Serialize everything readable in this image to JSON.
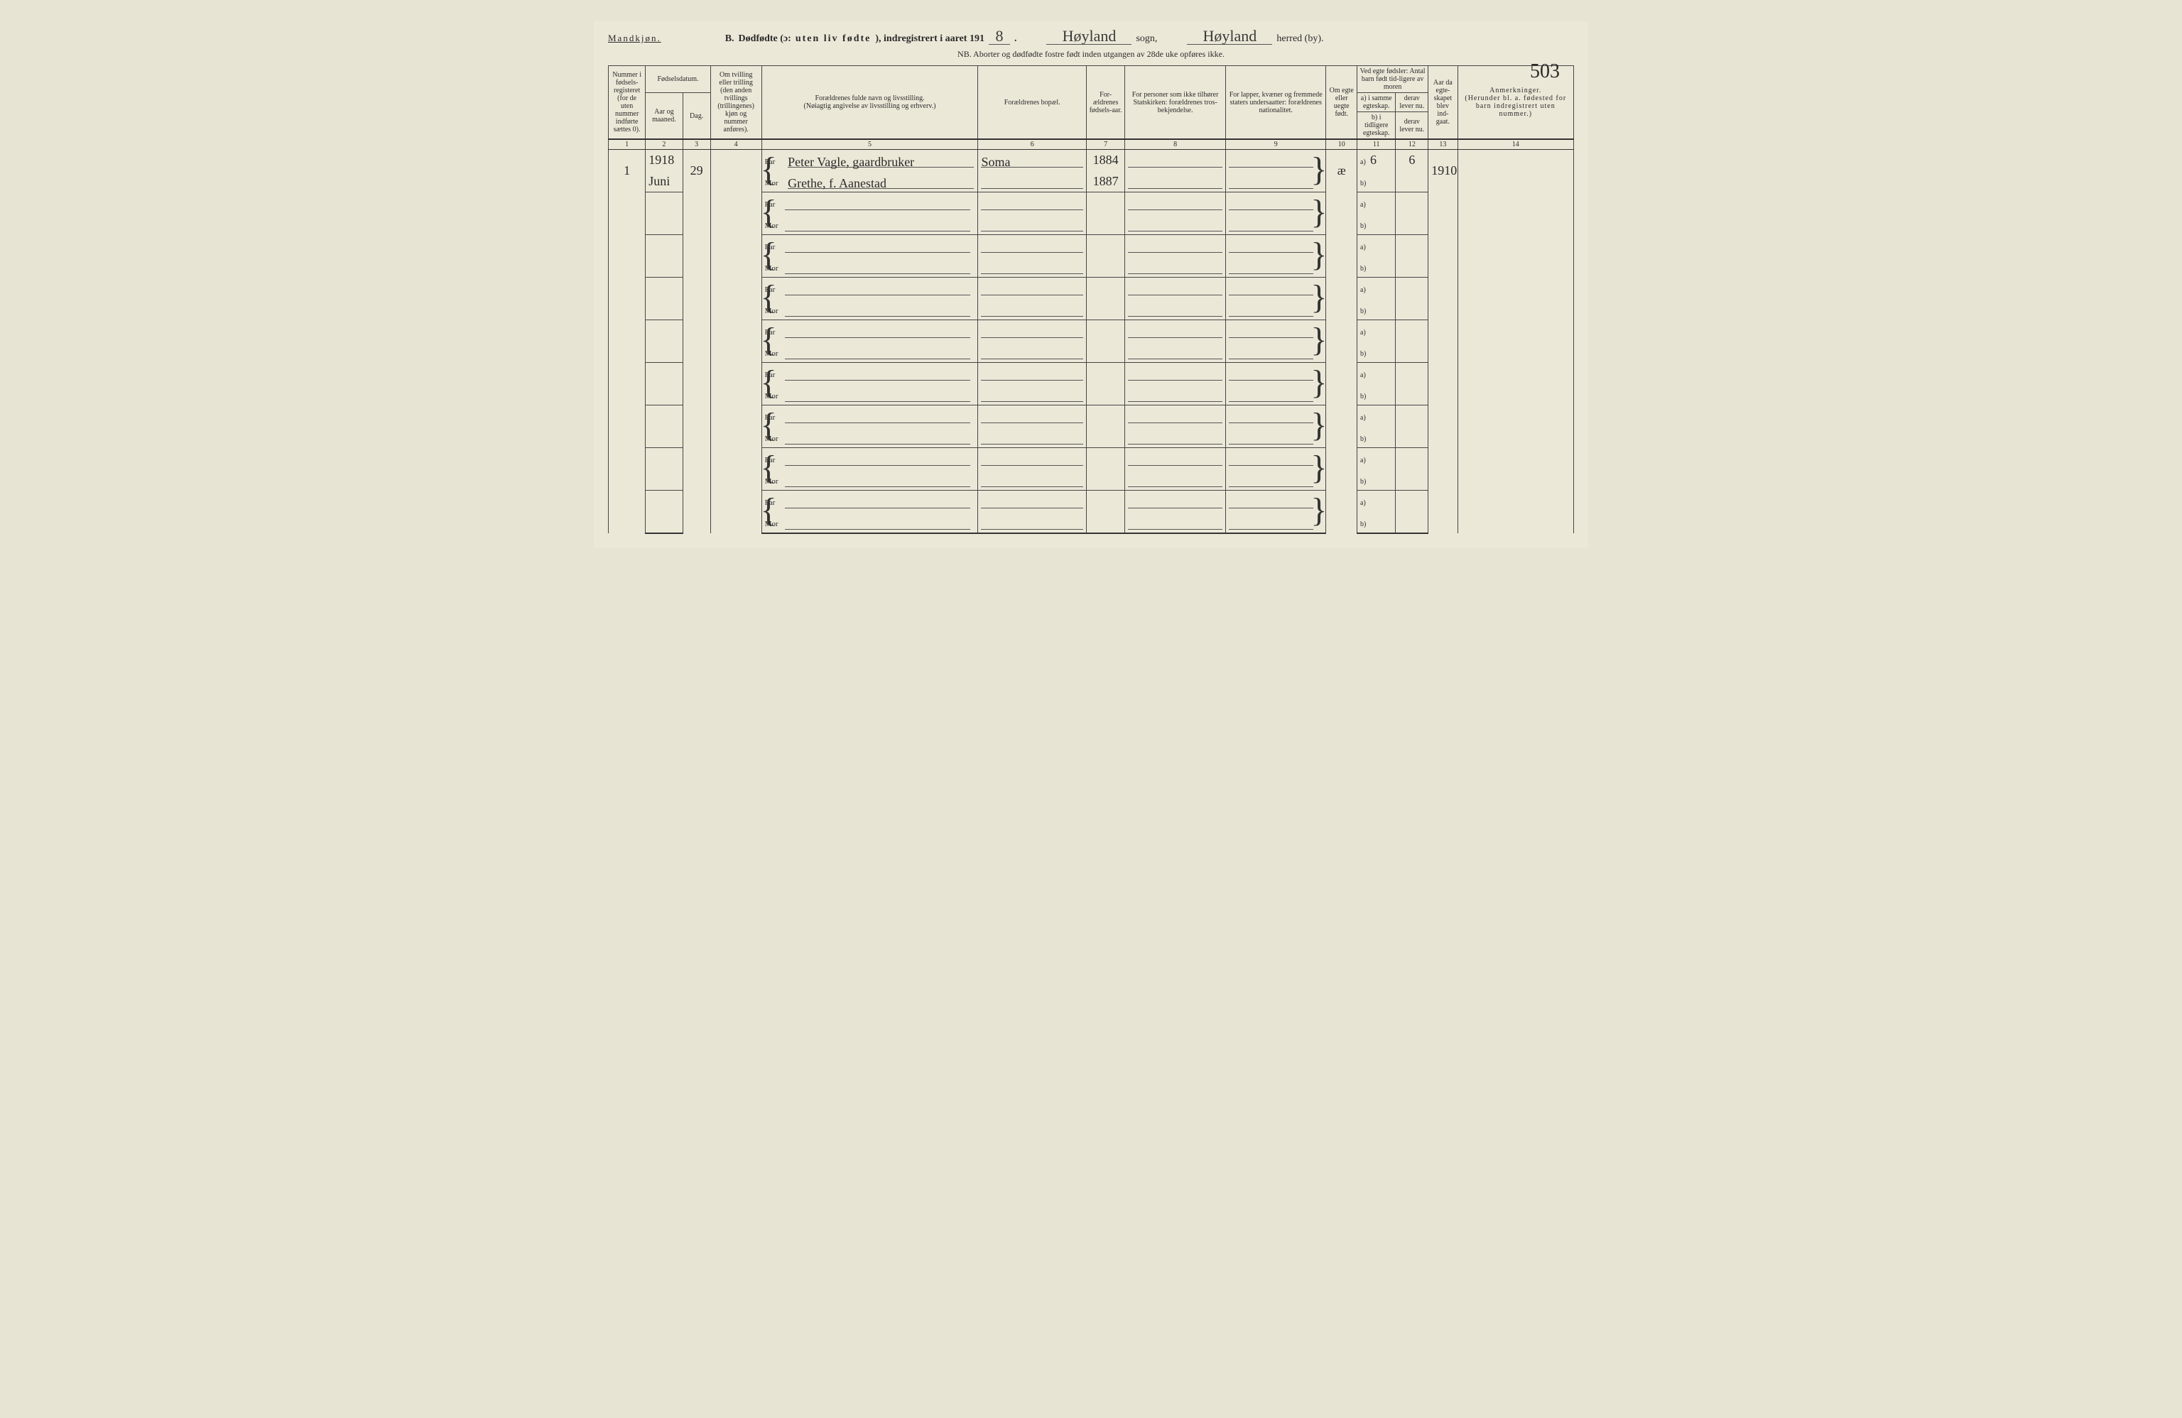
{
  "header": {
    "gender": "Mandkjøn.",
    "section_letter": "B.",
    "title_main": "Dødfødte (ɔ:",
    "title_spaced": "uten liv fødte",
    "title_tail": "), indregistrert i aaret 191",
    "year_digit": "8",
    "period": ".",
    "sogn_value": "Høyland",
    "sogn_label": "sogn,",
    "herred_value": "Høyland",
    "herred_label": "herred (by).",
    "page_number": "503",
    "nb": "NB.  Aborter og dødfødte fostre født inden utgangen av 28de uke opføres ikke."
  },
  "columns": {
    "c1": "Nummer i fødsels-registeret (for de uten nummer indførte sættes 0).",
    "c2_top": "Fødselsdatum.",
    "c2a": "Aar og maaned.",
    "c2b": "Dag.",
    "c4": "Om tvilling eller trilling (den anden tvillings (trillingenes) kjøn og nummer anføres).",
    "c5": "Forældrenes fulde navn og livsstilling.\n(Nøiagtig angivelse av livsstilling og erhverv.)",
    "c6": "Forældrenes bopæl.",
    "c7": "For-ældrenes fødsels-aar.",
    "c8": "For personer som ikke tilhører Statskirken: forældrenes tros-bekjendelse.",
    "c9": "For lapper, kvæner og fremmede staters undersaatter: forældrenes nationalitet.",
    "c10": "Om egte eller uegte født.",
    "c11_top": "Ved egte fødsler: Antal barn født tid-ligere av moren",
    "c11a": "a) i samme egteskap.",
    "c11b": "b) i tidligere egteskap.",
    "c12a": "derav lever nu.",
    "c12b": "derav lever nu.",
    "c13": "Aar da egte-skapet blev ind-gaat.",
    "c14": "Anmerkninger.\n(Herunder bl. a. fødested for barn indregistrert uten nummer.)"
  },
  "colnums": [
    "1",
    "2",
    "3",
    "4",
    "5",
    "6",
    "7",
    "8",
    "9",
    "10",
    "11",
    "12",
    "13",
    "14"
  ],
  "labels": {
    "far": "Far",
    "mor": "Mor",
    "a": "a)",
    "b": "b)"
  },
  "entry": {
    "number": "1",
    "year": "1918",
    "month": "Juni",
    "day": "29",
    "far_name": "Peter Vagle, gaardbruker",
    "mor_name": "Grethe, f. Aanestad",
    "bopael": "Soma",
    "far_year": "1884",
    "mor_year": "1887",
    "egte": "æ",
    "c11a": "6",
    "c12a": "6",
    "c13": "1910"
  }
}
